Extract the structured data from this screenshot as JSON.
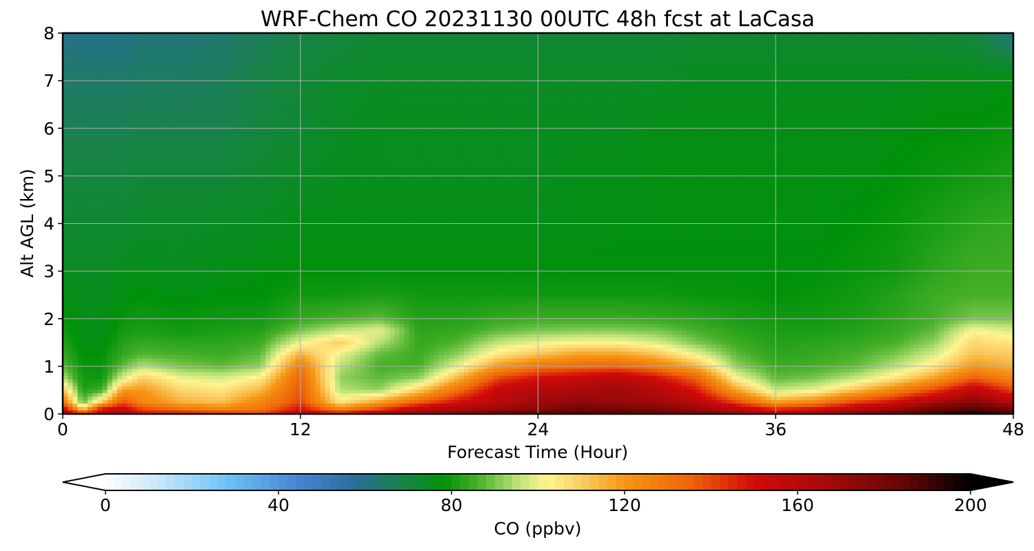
{
  "chart_data": {
    "type": "heatmap",
    "title": "WRF-Chem CO  20231130 00UTC 48h fcst at LaCasa",
    "xlabel": "Forecast Time (Hour)",
    "ylabel": "Alt AGL (km)",
    "xlim": [
      0,
      48
    ],
    "ylim": [
      0,
      8
    ],
    "x_ticks": [
      "0",
      "12",
      "24",
      "36",
      "48"
    ],
    "y_ticks": [
      "0",
      "1",
      "2",
      "3",
      "4",
      "5",
      "6",
      "7",
      "8"
    ],
    "grid": true,
    "colorbar": {
      "label": "CO  (ppbv)",
      "range": [
        0,
        200
      ],
      "ticks": [
        "0",
        "40",
        "80",
        "120",
        "160",
        "200"
      ],
      "extend": "both",
      "orientation": "horizontal"
    },
    "x_hours": [
      0,
      1,
      2,
      3,
      4,
      6,
      8,
      10,
      12,
      14,
      16,
      18,
      20,
      22,
      24,
      26,
      28,
      30,
      32,
      34,
      36,
      38,
      40,
      42,
      44,
      46,
      48
    ],
    "alt_km": [
      0,
      0.1,
      0.25,
      0.5,
      0.75,
      1.0,
      1.25,
      1.5,
      1.75,
      2.0,
      2.5,
      3,
      4,
      5,
      6,
      7,
      8
    ],
    "co_ppbv": [
      [
        165,
        145,
        155,
        165,
        150,
        150,
        145,
        140,
        160,
        150,
        165,
        170,
        175,
        185,
        185,
        190,
        188,
        185,
        180,
        170,
        160,
        165,
        175,
        185,
        192,
        198,
        190
      ],
      [
        155,
        110,
        150,
        155,
        140,
        130,
        125,
        130,
        150,
        125,
        140,
        160,
        165,
        170,
        175,
        182,
        180,
        178,
        170,
        160,
        145,
        150,
        160,
        170,
        182,
        188,
        180
      ],
      [
        130,
        88,
        110,
        138,
        125,
        115,
        112,
        125,
        140,
        105,
        118,
        135,
        150,
        160,
        168,
        172,
        170,
        168,
        160,
        140,
        118,
        125,
        140,
        150,
        165,
        175,
        162
      ],
      [
        112,
        82,
        85,
        118,
        120,
        108,
        105,
        114,
        138,
        95,
        92,
        110,
        132,
        155,
        162,
        165,
        168,
        162,
        148,
        118,
        96,
        100,
        112,
        125,
        140,
        158,
        140
      ],
      [
        95,
        80,
        80,
        98,
        110,
        100,
        98,
        104,
        135,
        92,
        88,
        92,
        115,
        140,
        150,
        155,
        160,
        150,
        135,
        102,
        88,
        90,
        96,
        105,
        118,
        136,
        125
      ],
      [
        88,
        79,
        79,
        88,
        95,
        90,
        88,
        92,
        128,
        95,
        86,
        86,
        100,
        120,
        130,
        133,
        135,
        128,
        115,
        92,
        85,
        86,
        88,
        95,
        105,
        120,
        115
      ],
      [
        84,
        78,
        78,
        84,
        87,
        86,
        85,
        88,
        115,
        100,
        88,
        85,
        92,
        105,
        112,
        118,
        118,
        112,
        100,
        88,
        83,
        84,
        86,
        90,
        98,
        112,
        110
      ],
      [
        82,
        77,
        77,
        82,
        84,
        83,
        83,
        85,
        100,
        110,
        95,
        84,
        87,
        96,
        100,
        102,
        102,
        98,
        90,
        85,
        82,
        83,
        84,
        86,
        92,
        108,
        105
      ],
      [
        80,
        76,
        76,
        80,
        81,
        80,
        81,
        82,
        90,
        96,
        100,
        83,
        84,
        88,
        90,
        91,
        91,
        90,
        86,
        83,
        81,
        81,
        82,
        84,
        88,
        102,
        98
      ],
      [
        79,
        76,
        76,
        79,
        80,
        79,
        80,
        80,
        84,
        86,
        88,
        82,
        82,
        84,
        85,
        85,
        85,
        84,
        83,
        81,
        80,
        80,
        81,
        83,
        86,
        90,
        90
      ],
      [
        77,
        75,
        75,
        77,
        78,
        77,
        78,
        78,
        80,
        80,
        81,
        80,
        80,
        80,
        80,
        80,
        80,
        80,
        79,
        79,
        78,
        79,
        80,
        82,
        85,
        86,
        86
      ],
      [
        75,
        74,
        74,
        75,
        76,
        75,
        76,
        77,
        78,
        78,
        78,
        78,
        78,
        78,
        78,
        78,
        78,
        78,
        78,
        78,
        78,
        78,
        79,
        80,
        83,
        85,
        85
      ],
      [
        72,
        72,
        72,
        72,
        73,
        73,
        74,
        74,
        76,
        76,
        76,
        76,
        76,
        76,
        76,
        76,
        77,
        77,
        77,
        77,
        77,
        77,
        78,
        79,
        81,
        83,
        84
      ],
      [
        70,
        70,
        70,
        70,
        71,
        71,
        71,
        72,
        74,
        75,
        75,
        75,
        75,
        75,
        75,
        76,
        76,
        77,
        77,
        77,
        77,
        77,
        77,
        78,
        79,
        80,
        81
      ],
      [
        67,
        67,
        67,
        67,
        68,
        68,
        68,
        70,
        72,
        74,
        75,
        75,
        75,
        75,
        75,
        75,
        75,
        76,
        76,
        76,
        76,
        76,
        76,
        77,
        78,
        78,
        79
      ],
      [
        64,
        64,
        64,
        64,
        65,
        65,
        66,
        69,
        71,
        73,
        74,
        74,
        74,
        74,
        74,
        74,
        74,
        74,
        75,
        75,
        75,
        75,
        75,
        75,
        76,
        76,
        77
      ],
      [
        60,
        60,
        60,
        60,
        62,
        62,
        63,
        66,
        69,
        70,
        71,
        71,
        71,
        71,
        71,
        71,
        71,
        71,
        72,
        72,
        72,
        72,
        72,
        72,
        71,
        70,
        60
      ]
    ]
  }
}
